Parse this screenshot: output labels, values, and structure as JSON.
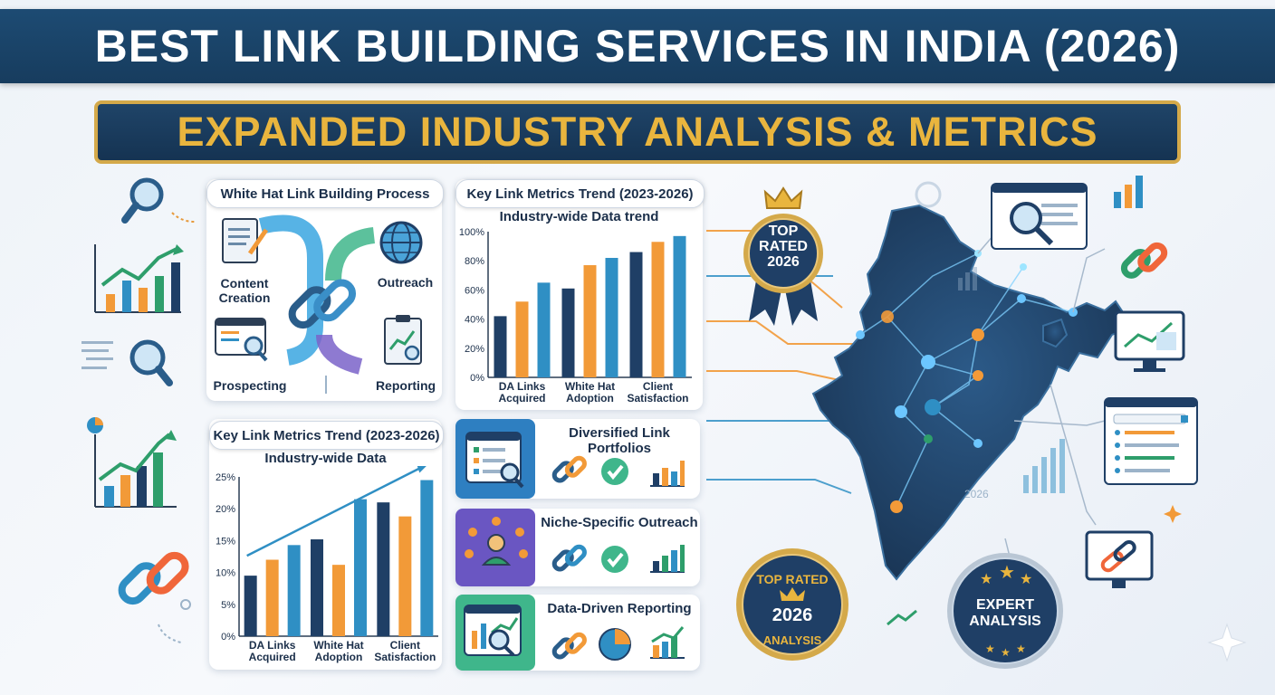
{
  "header": {
    "title": "BEST LINK BUILDING SERVICES IN INDIA (2026)",
    "subtitle": "EXPANDED INDUSTRY ANALYSIS & METRICS"
  },
  "process": {
    "title": "White Hat Link Building Process",
    "steps": [
      "Content Creation",
      "Outreach",
      "Prospecting",
      "Reporting"
    ]
  },
  "chart_top": {
    "title": "Key Link Metrics Trend (2023-2026)",
    "subtitle": "Industry-wide Data trend"
  },
  "chart_bottom": {
    "title": "Key Link Metrics Trend (2023-2026)",
    "subtitle": "Industry-wide Data"
  },
  "features": [
    {
      "title": "Diversified Link Portfolios"
    },
    {
      "title": "Niche-Specific Outreach"
    },
    {
      "title": "Data-Driven Reporting"
    }
  ],
  "badges": {
    "top_rated_upper": {
      "line1": "TOP",
      "line2": "RATED",
      "line3": "2026"
    },
    "top_rated_lower": {
      "arc_top": "TOP RATED",
      "year": "2026",
      "arc_bottom": "ANALYSIS"
    },
    "expert": {
      "line1": "EXPERT",
      "line2": "ANALYSIS"
    }
  },
  "map": {
    "year_label": "2026"
  },
  "colors": {
    "navy": "#1f3f66",
    "orange": "#f29a38",
    "blue": "#2f8fc4",
    "gold": "#e9b53e",
    "green": "#2e9e6b"
  },
  "icons": [
    "magnifier-icon",
    "growth-chart-icon",
    "chain-link-icon",
    "pie-icon",
    "document-icon",
    "globe-icon",
    "browser-icon",
    "report-icon",
    "checkmark-icon",
    "people-icon",
    "crown-icon",
    "sparkle-icon"
  ],
  "chart_data": [
    {
      "type": "bar",
      "title": "Key Link Metrics Trend (2023-2026)",
      "subtitle": "Industry-wide Data trend",
      "categories": [
        "DA Links Acquired",
        "White Hat Adoption",
        "Client Satisfaction"
      ],
      "series": [
        {
          "values": [
            42,
            61,
            86
          ]
        },
        {
          "values": [
            52,
            77,
            93
          ]
        },
        {
          "values": [
            65,
            82,
            97
          ]
        }
      ],
      "yticks": [
        "0%",
        "20%",
        "40%",
        "60%",
        "80%",
        "100%"
      ],
      "ylim": [
        0,
        100
      ],
      "grid": false
    },
    {
      "type": "bar",
      "title": "Key Link Metrics Trend (2023-2026)",
      "subtitle": "Industry-wide Data",
      "categories": [
        "DA Links Acquired",
        "White Hat Adoption",
        "Client Satisfaction"
      ],
      "series": [
        {
          "values": [
            9.5,
            15.2,
            21
          ]
        },
        {
          "values": [
            12,
            11.2,
            18.8
          ]
        },
        {
          "values": [
            14.3,
            21.5,
            24.5
          ]
        }
      ],
      "yticks": [
        "0%",
        "5%",
        "10%",
        "15%",
        "20%",
        "25%"
      ],
      "ylim": [
        0,
        25
      ],
      "trend_arrow": true,
      "grid": false
    }
  ]
}
